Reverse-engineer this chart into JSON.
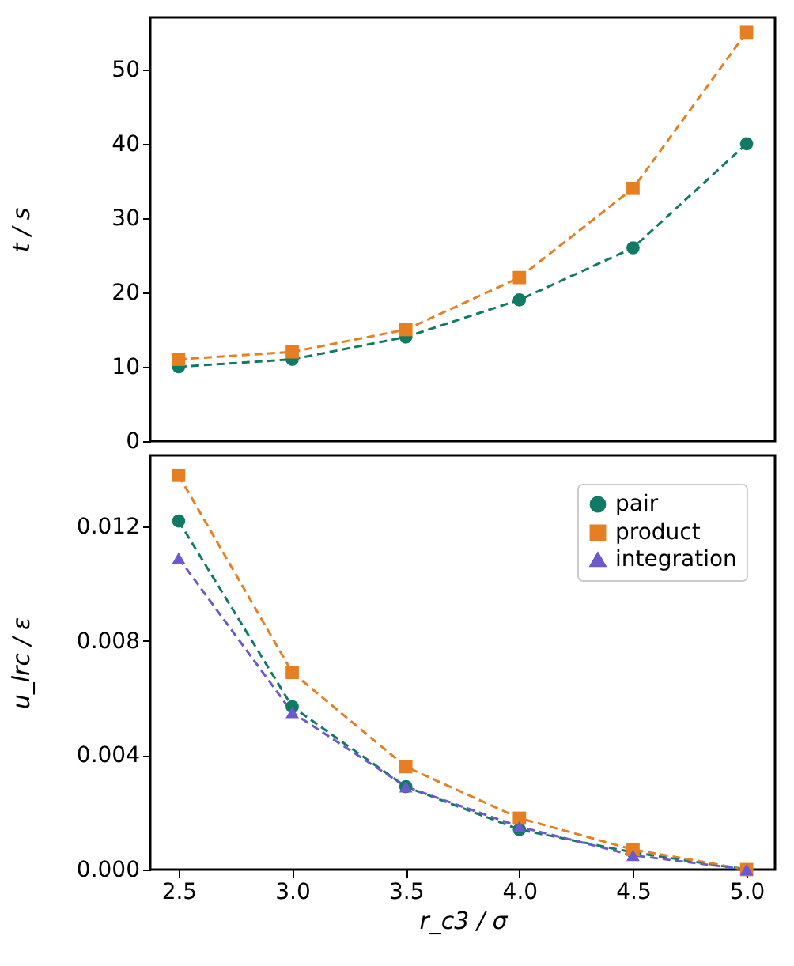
{
  "chart_data": [
    {
      "type": "line",
      "ylabel": "t / s",
      "x": [
        2.5,
        3.0,
        3.5,
        4.0,
        4.5,
        5.0
      ],
      "xlim": [
        2.375,
        5.125
      ],
      "ylim": [
        0,
        57
      ],
      "yticks": [
        0,
        10,
        20,
        30,
        40,
        50
      ],
      "tick_labels": "y",
      "line_style": "dashed",
      "grid": false,
      "series": [
        {
          "color": "#117a65",
          "marker": "circle",
          "values": [
            10,
            11,
            14,
            19,
            26,
            40
          ]
        },
        {
          "color": "#e67e22",
          "marker": "square",
          "values": [
            11,
            12,
            15,
            22,
            34,
            55
          ]
        }
      ]
    },
    {
      "type": "line",
      "xlabel": "r_c3 / σ",
      "ylabel": "u_lrc / ε",
      "x": [
        2.5,
        3.0,
        3.5,
        4.0,
        4.5,
        5.0
      ],
      "xlim": [
        2.375,
        5.125
      ],
      "xticks": [
        {
          "value": 2.5,
          "label": "2.5"
        },
        {
          "value": 3.0,
          "label": "3.0"
        },
        {
          "value": 3.5,
          "label": "3.5"
        },
        {
          "value": 4.0,
          "label": "4.0"
        },
        {
          "value": 4.5,
          "label": "4.5"
        },
        {
          "value": 5.0,
          "label": "5.0"
        }
      ],
      "ylim": [
        0,
        0.0145
      ],
      "yticks": [
        {
          "value": 0,
          "label": "0.000"
        },
        {
          "value": 0.004,
          "label": "0.004"
        },
        {
          "value": 0.008,
          "label": "0.008"
        },
        {
          "value": 0.012,
          "label": "0.012"
        }
      ],
      "line_style": "dashed",
      "legend": "top right",
      "grid": false,
      "series": [
        {
          "name": "pair",
          "color": "#117a65",
          "marker": "circle",
          "values": [
            0.0122,
            0.0057,
            0.0029,
            0.0014,
            0.0006,
            0.0
          ]
        },
        {
          "name": "product",
          "color": "#e67e22",
          "marker": "square",
          "values": [
            0.0138,
            0.0069,
            0.0036,
            0.0018,
            0.0007,
            0.0
          ]
        },
        {
          "name": "integration",
          "color": "#6a5acd",
          "marker": "triangle",
          "values": [
            0.0109,
            0.0055,
            0.0029,
            0.0015,
            0.0005,
            0.0
          ]
        }
      ]
    }
  ]
}
